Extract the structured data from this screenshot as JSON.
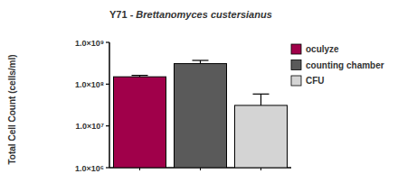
{
  "chart_data": {
    "type": "bar",
    "title": "Y71 - Brettanomyces custersianus",
    "y_label": "Total Cell Count (cells/ml)",
    "categories": [
      "oculyze",
      "counting chamber",
      "CFU"
    ],
    "values": [
      150000000,
      310000000,
      31000000
    ],
    "errors": [
      12000000,
      60000000,
      27000000
    ],
    "colors": [
      "#a0004a",
      "#5a5a5a",
      "#d4d4d4"
    ],
    "ylim": [
      1000000,
      1000000000
    ],
    "yticks": [
      {
        "value": 1000000,
        "label": "1.0×10⁶"
      },
      {
        "value": 10000000,
        "label": "1.0×10⁷"
      },
      {
        "value": 100000000,
        "label": "1.0×10⁸"
      },
      {
        "value": 1000000000,
        "label": "1.0×10⁹"
      }
    ],
    "log": "y",
    "grid": false,
    "legend": "right",
    "tick_labels": "y"
  }
}
